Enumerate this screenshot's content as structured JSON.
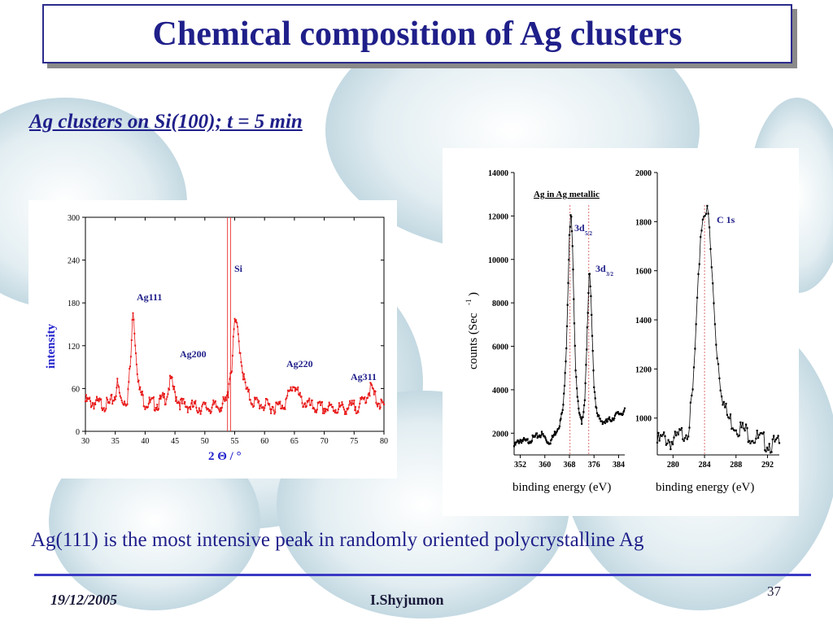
{
  "slide": {
    "title": "Chemical composition of Ag clusters",
    "subtitle": "Ag clusters on Si(100); t = 5 min",
    "caption": "Ag(111) is the most intensive peak in randomly oriented polycrystalline Ag",
    "footer_date": "19/12/2005",
    "footer_author": "I.Shyjumon",
    "page_number": "37"
  },
  "colors": {
    "title": "#1f1f8a",
    "accent_red": "#e81818",
    "peak_label": "#1f1f8a",
    "background_bubble": "#c9dde6"
  },
  "chart_data": [
    {
      "type": "line",
      "ylabel": "intensity",
      "xlabel": "2 Θ / °",
      "xlim": [
        30,
        80
      ],
      "ylim": [
        0,
        300
      ],
      "x_ticks": [
        "30",
        "35",
        "40",
        "45",
        "50",
        "55",
        "60",
        "65",
        "70",
        "75",
        "80"
      ],
      "y_ticks": [
        "0",
        "60",
        "120",
        "180",
        "240",
        "300"
      ],
      "grid": false,
      "series": [
        {
          "x": [
            30,
            32,
            34,
            35,
            35.3,
            36,
            37,
            37.6,
            38,
            38.3,
            39,
            40,
            42,
            43.5,
            44.3,
            45,
            46,
            48,
            50,
            52,
            53.5,
            53.9,
            54.1,
            54.5,
            55,
            55.5,
            56,
            56.5,
            57,
            58,
            60,
            62,
            63.5,
            64.5,
            65,
            66,
            68,
            70,
            72,
            74,
            76,
            77.3,
            77.8,
            78.5,
            79.5,
            80
          ],
          "values": [
            42,
            39,
            37,
            50,
            68,
            42,
            44,
            100,
            178,
            130,
            58,
            40,
            38,
            48,
            72,
            52,
            38,
            34,
            33,
            34,
            40,
            52,
            78,
            88,
            155,
            140,
            108,
            75,
            55,
            42,
            36,
            34,
            40,
            60,
            66,
            44,
            34,
            32,
            32,
            33,
            36,
            52,
            62,
            48,
            36,
            34
          ]
        }
      ],
      "vertical_lines_x": [
        53.8,
        54.3
      ],
      "annotations": [
        "Ag111",
        "Ag200",
        "Si",
        "Ag220",
        "Ag311"
      ]
    },
    {
      "type": "line",
      "title": "Ag in Ag metallic",
      "ylabel": "counts (Sec-1)",
      "xlabel": "binding energy (eV)",
      "xlim": [
        350,
        386
      ],
      "ylim": [
        1000,
        14000
      ],
      "x_ticks": [
        "352",
        "360",
        "368",
        "376",
        "384"
      ],
      "y_ticks": [
        "2000",
        "4000",
        "6000",
        "8000",
        "10000",
        "12000",
        "14000"
      ],
      "series": [
        {
          "x": [
            350,
            352,
            354,
            356,
            358,
            359,
            360,
            361,
            362,
            364,
            365,
            366,
            367,
            368,
            368.5,
            369,
            370,
            371,
            372,
            373,
            374,
            374.5,
            375,
            376,
            377,
            378,
            380,
            382,
            384,
            386
          ],
          "values": [
            1400,
            1700,
            1600,
            1750,
            1900,
            1950,
            1800,
            1600,
            1650,
            2200,
            2500,
            3200,
            6000,
            11000,
            12200,
            10500,
            5000,
            3000,
            2400,
            3600,
            7500,
            9600,
            8200,
            4200,
            2800,
            2600,
            2500,
            2700,
            2900,
            3000
          ]
        }
      ],
      "vertical_lines_x": [
        368.2,
        374.3
      ],
      "annotations": [
        "3d5/2",
        "3d3/2"
      ]
    },
    {
      "type": "line",
      "ylabel": "",
      "xlabel": "binding energy (eV)",
      "xlim": [
        278,
        293.5
      ],
      "ylim": [
        850,
        2000
      ],
      "x_ticks": [
        "280",
        "284",
        "288",
        "292"
      ],
      "y_ticks": [
        "1000",
        "1200",
        "1400",
        "1600",
        "1800",
        "2000"
      ],
      "series": [
        {
          "x": [
            278,
            279,
            280,
            281,
            282,
            282.5,
            283,
            283.5,
            284,
            284.5,
            285,
            285.5,
            286,
            286.5,
            287,
            288,
            289,
            290,
            291,
            292,
            293
          ],
          "values": [
            900,
            920,
            900,
            930,
            960,
            1100,
            1400,
            1750,
            1860,
            1820,
            1560,
            1300,
            1150,
            1050,
            1000,
            970,
            950,
            930,
            910,
            900,
            890
          ]
        }
      ],
      "vertical_lines_x": [
        284
      ],
      "annotations": [
        "C 1s"
      ]
    }
  ],
  "xrd_labels": {
    "ag111": "Ag111",
    "ag200": "Ag200",
    "si": "Si",
    "ag220": "Ag220",
    "ag311": "Ag311",
    "ylabel": "intensity",
    "xlabel": "2 Θ / °"
  },
  "xps_labels": {
    "title": "Ag in Ag metallic",
    "peak1_main": "3d",
    "peak1_sub": "5/2",
    "peak2_main": "3d",
    "peak2_sub": "3/2",
    "c1s": "C 1s",
    "ylabel_main": "counts (Sec",
    "ylabel_sup": "-1",
    "ylabel_end": ")",
    "xlabel_left": "binding energy (eV)",
    "xlabel_right": "binding energy (eV)"
  }
}
